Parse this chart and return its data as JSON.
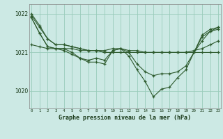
{
  "title": "Graphe pression niveau de la mer (hPa)",
  "bg_color": "#cce9e4",
  "grid_color": "#99ccbb",
  "line_color": "#2d5a2d",
  "ylim": [
    1019.55,
    1022.25
  ],
  "yticks": [
    1020,
    1021,
    1022
  ],
  "xlim": [
    -0.3,
    23.3
  ],
  "xticks": [
    0,
    1,
    2,
    3,
    4,
    5,
    6,
    7,
    8,
    9,
    10,
    11,
    12,
    13,
    14,
    15,
    16,
    17,
    18,
    19,
    20,
    21,
    22,
    23
  ],
  "series": [
    {
      "x": [
        0,
        1,
        2,
        3,
        4,
        5,
        6,
        7,
        8,
        9,
        10,
        11,
        12,
        13,
        14,
        15,
        16,
        17,
        18,
        19,
        20,
        21,
        22,
        23
      ],
      "y": [
        1021.95,
        1021.65,
        1021.35,
        1021.2,
        1021.2,
        1021.15,
        1021.1,
        1021.05,
        1021.05,
        1021.0,
        1021.0,
        1021.0,
        1021.0,
        1021.0,
        1021.0,
        1021.0,
        1021.0,
        1021.0,
        1021.0,
        1021.0,
        1021.0,
        1021.0,
        1021.0,
        1021.0
      ]
    },
    {
      "x": [
        0,
        1,
        2,
        3,
        4,
        5,
        6,
        7,
        8,
        9,
        10,
        11,
        12,
        13,
        14,
        15,
        16,
        17,
        18,
        19,
        20,
        21,
        22,
        23
      ],
      "y": [
        1021.2,
        1021.15,
        1021.1,
        1021.1,
        1021.1,
        1021.1,
        1021.05,
        1021.05,
        1021.05,
        1021.05,
        1021.1,
        1021.1,
        1021.05,
        1021.05,
        1021.0,
        1021.0,
        1021.0,
        1021.0,
        1021.0,
        1021.0,
        1021.05,
        1021.1,
        1021.2,
        1021.3
      ]
    },
    {
      "x": [
        0,
        1,
        2,
        3,
        4,
        5,
        6,
        7,
        8,
        9,
        10,
        11,
        12,
        13,
        14,
        15,
        16,
        17,
        18,
        19,
        20,
        21,
        22,
        23
      ],
      "y": [
        1021.9,
        1021.5,
        1021.15,
        1021.1,
        1021.1,
        1021.0,
        1020.85,
        1020.8,
        1020.85,
        1020.8,
        1021.05,
        1021.1,
        1021.0,
        1020.7,
        1020.5,
        1020.4,
        1020.45,
        1020.45,
        1020.5,
        1020.65,
        1021.0,
        1021.4,
        1021.55,
        1021.6
      ]
    },
    {
      "x": [
        0,
        1,
        2,
        3,
        4,
        5,
        6,
        7,
        8,
        9,
        10,
        11,
        12,
        13,
        14,
        15,
        16,
        17,
        18,
        19,
        20,
        21,
        22,
        23
      ],
      "y": [
        1021.9,
        1021.5,
        1021.15,
        1021.1,
        1021.05,
        1020.95,
        1020.85,
        1020.75,
        1020.75,
        1020.7,
        1021.05,
        1021.1,
        1020.9,
        1020.55,
        1020.25,
        1019.85,
        1020.05,
        1020.1,
        1020.35,
        1020.55,
        1021.0,
        1021.45,
        1021.6,
        1021.65
      ]
    },
    {
      "x": [
        0,
        1,
        2,
        3,
        4,
        5,
        6,
        7,
        8,
        9,
        10,
        11,
        12,
        13,
        14,
        15,
        16,
        17,
        18,
        19,
        20,
        21,
        22,
        23
      ],
      "y": [
        1022.0,
        1021.7,
        1021.35,
        1021.2,
        1021.2,
        1021.15,
        1021.1,
        1021.05,
        1021.05,
        1021.0,
        1021.0,
        1021.0,
        1021.0,
        1021.0,
        1021.0,
        1021.0,
        1021.0,
        1021.0,
        1021.0,
        1021.0,
        1021.0,
        1021.3,
        1021.55,
        1021.65
      ]
    }
  ]
}
